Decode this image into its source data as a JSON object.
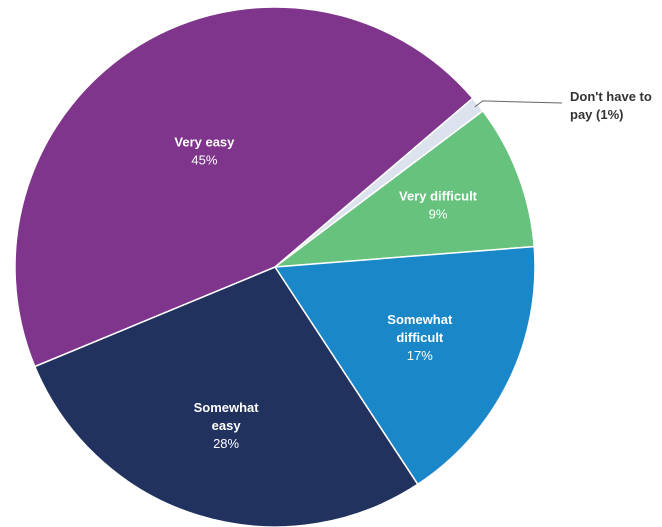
{
  "chart_data": {
    "type": "pie",
    "title": "",
    "slices": [
      {
        "label": "Don't have to pay",
        "value": 1,
        "display": "Don't have to pay (1%)",
        "color": "#dde3ee"
      },
      {
        "label": "Very difficult",
        "value": 9,
        "display": "9%",
        "color": "#67c27d"
      },
      {
        "label": "Somewhat difficult",
        "value": 17,
        "display": "17%",
        "color": "#1a87c9"
      },
      {
        "label": "Somewhat easy",
        "value": 28,
        "display": "28%",
        "color": "#21325f"
      },
      {
        "label": "Very easy",
        "value": 45,
        "display": "45%",
        "color": "#7f358c"
      }
    ],
    "legend": "none"
  }
}
